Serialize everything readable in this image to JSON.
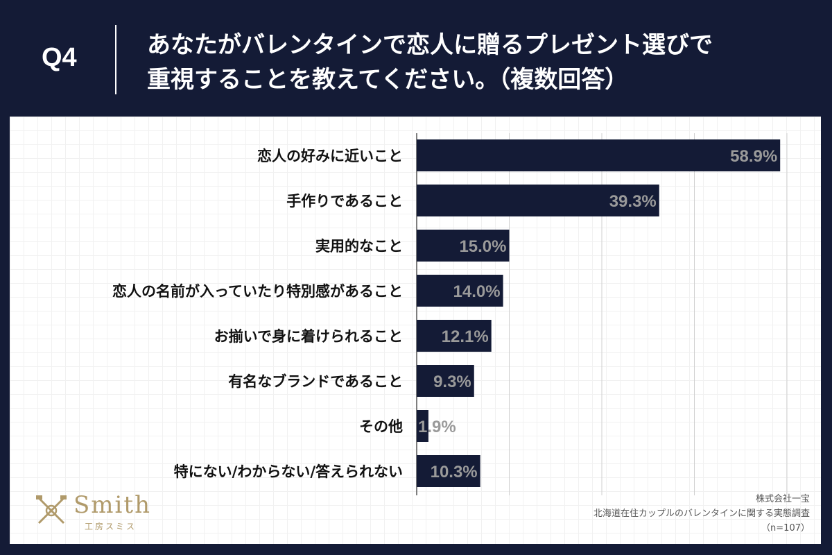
{
  "header": {
    "question_no": "Q4",
    "question": "あなたがバレンタインで恋人に贈るプレゼント選びで\n重視することを教えてください。（複数回答）"
  },
  "chart_data": {
    "type": "bar",
    "orientation": "horizontal",
    "categories": [
      "恋人の好みに近いこと",
      "手作りであること",
      "実用的なこと",
      "恋人の名前が入っていたり特別感があること",
      "お揃いで身に着けられること",
      "有名なブランドであること",
      "その他",
      "特にない/わからない/答えられない"
    ],
    "values": [
      58.9,
      39.3,
      15.0,
      14.0,
      12.1,
      9.3,
      1.9,
      10.3
    ],
    "value_labels": [
      "58.9%",
      "39.3%",
      "15.0%",
      "14.0%",
      "12.1%",
      "9.3%",
      "1.9%",
      "10.3%"
    ],
    "xlim": [
      0,
      60
    ],
    "grid": true,
    "bar_color": "#141b36",
    "value_label_color": "#9a9a9a"
  },
  "logo": {
    "name": "Smith",
    "subtitle": "工房スミス",
    "color": "#b09a6a"
  },
  "footer": {
    "company": "株式会社一宝",
    "survey": "北海道在住カップルのバレンタインに関する実態調査",
    "sample": "（n=107）"
  },
  "colors": {
    "background": "#141b36",
    "panel": "#ffffff",
    "text": "#111111"
  }
}
